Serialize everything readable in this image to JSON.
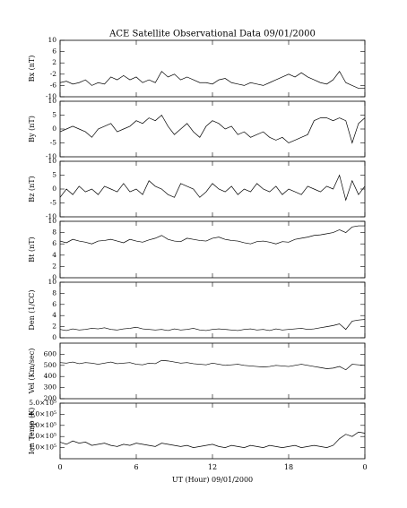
{
  "title": "ACE Satellite Observational Data   09/01/2000",
  "chart_data": [
    {
      "type": "line",
      "ylabel": "Bx (nT)",
      "xlim": [
        0,
        24
      ],
      "ylim": [
        -10,
        10
      ],
      "yticks": [
        -10,
        -6,
        -2,
        2,
        6,
        10
      ],
      "x": [
        0,
        0.5,
        1,
        1.5,
        2,
        2.5,
        3,
        3.5,
        4,
        4.5,
        5,
        5.5,
        6,
        6.5,
        7,
        7.5,
        8,
        8.5,
        9,
        9.5,
        10,
        10.5,
        11,
        11.5,
        12,
        12.5,
        13,
        13.5,
        14,
        14.5,
        15,
        15.5,
        16,
        16.5,
        17,
        17.5,
        18,
        18.5,
        19,
        19.5,
        20,
        20.5,
        21,
        21.5,
        22,
        22.5,
        23,
        23.5,
        24
      ],
      "values": [
        -5,
        -4.5,
        -5.5,
        -5,
        -4,
        -6,
        -5,
        -5.5,
        -3,
        -4,
        -2.5,
        -4,
        -3,
        -5,
        -4,
        -5,
        -1,
        -3,
        -2,
        -4,
        -3,
        -4,
        -5,
        -5,
        -5.5,
        -4,
        -3.5,
        -5,
        -5.5,
        -6,
        -5,
        -5.5,
        -6,
        -5,
        -4,
        -3,
        -2,
        -3,
        -1.5,
        -3,
        -4,
        -5,
        -5.5,
        -4,
        -1,
        -5,
        -6,
        -7,
        -7
      ]
    },
    {
      "type": "line",
      "ylabel": "By (nT)",
      "xlim": [
        0,
        24
      ],
      "ylim": [
        -10,
        10
      ],
      "yticks": [
        -10,
        -5,
        0,
        5,
        10
      ],
      "x": [
        0,
        0.5,
        1,
        1.5,
        2,
        2.5,
        3,
        3.5,
        4,
        4.5,
        5,
        5.5,
        6,
        6.5,
        7,
        7.5,
        8,
        8.5,
        9,
        9.5,
        10,
        10.5,
        11,
        11.5,
        12,
        12.5,
        13,
        13.5,
        14,
        14.5,
        15,
        15.5,
        16,
        16.5,
        17,
        17.5,
        18,
        18.5,
        19,
        19.5,
        20,
        20.5,
        21,
        21.5,
        22,
        22.5,
        23,
        23.5,
        24
      ],
      "values": [
        -1,
        0,
        1,
        0,
        -1,
        -3,
        0,
        1,
        2,
        -1,
        0,
        1,
        3,
        2,
        4,
        3,
        5,
        1,
        -2,
        0,
        2,
        -1,
        -3,
        1,
        3,
        2,
        0,
        1,
        -2,
        -1,
        -3,
        -2,
        -1,
        -3,
        -4,
        -3,
        -5,
        -4,
        -3,
        -2,
        3,
        4,
        4,
        3,
        4,
        3,
        -5,
        2,
        4
      ]
    },
    {
      "type": "line",
      "ylabel": "Bz (nT)",
      "xlim": [
        0,
        24
      ],
      "ylim": [
        -10,
        10
      ],
      "yticks": [
        -10,
        -5,
        0,
        5,
        10
      ],
      "x": [
        0,
        0.5,
        1,
        1.5,
        2,
        2.5,
        3,
        3.5,
        4,
        4.5,
        5,
        5.5,
        6,
        6.5,
        7,
        7.5,
        8,
        8.5,
        9,
        9.5,
        10,
        10.5,
        11,
        11.5,
        12,
        12.5,
        13,
        13.5,
        14,
        14.5,
        15,
        15.5,
        16,
        16.5,
        17,
        17.5,
        18,
        18.5,
        19,
        19.5,
        20,
        20.5,
        21,
        21.5,
        22,
        22.5,
        23,
        23.5,
        24
      ],
      "values": [
        -3,
        0,
        -2,
        1,
        -1,
        0,
        -2,
        1,
        0,
        -1,
        2,
        -1,
        0,
        -2,
        3,
        1,
        0,
        -2,
        -3,
        2,
        1,
        0,
        -3,
        -1,
        2,
        0,
        -1,
        1,
        -2,
        0,
        -1,
        2,
        0,
        -1,
        1,
        -2,
        0,
        -1,
        -2,
        1,
        0,
        -1,
        1,
        0,
        5,
        -4,
        3,
        -2,
        1
      ]
    },
    {
      "type": "line",
      "ylabel": "Bt (nT)",
      "xlim": [
        0,
        24
      ],
      "ylim": [
        0,
        10
      ],
      "yticks": [
        0,
        2,
        4,
        6,
        8,
        10
      ],
      "x": [
        0,
        0.5,
        1,
        1.5,
        2,
        2.5,
        3,
        3.5,
        4,
        4.5,
        5,
        5.5,
        6,
        6.5,
        7,
        7.5,
        8,
        8.5,
        9,
        9.5,
        10,
        10.5,
        11,
        11.5,
        12,
        12.5,
        13,
        13.5,
        14,
        14.5,
        15,
        15.5,
        16,
        16.5,
        17,
        17.5,
        18,
        18.5,
        19,
        19.5,
        20,
        20.5,
        21,
        21.5,
        22,
        22.5,
        23,
        23.5,
        24
      ],
      "values": [
        6.5,
        6.2,
        6.8,
        6.5,
        6.3,
        6,
        6.5,
        6.6,
        6.8,
        6.5,
        6.2,
        6.8,
        6.5,
        6.3,
        6.7,
        7,
        7.5,
        6.8,
        6.5,
        6.4,
        7,
        6.8,
        6.6,
        6.5,
        7,
        7.2,
        6.8,
        6.6,
        6.5,
        6.2,
        6,
        6.4,
        6.5,
        6.3,
        6,
        6.4,
        6.3,
        6.8,
        7,
        7.2,
        7.5,
        7.6,
        7.8,
        8,
        8.5,
        8,
        9,
        9.2,
        9.2
      ]
    },
    {
      "type": "line",
      "ylabel": "Den (1/CC)",
      "xlim": [
        0,
        24
      ],
      "ylim": [
        0,
        10
      ],
      "yticks": [
        0,
        2,
        4,
        6,
        8,
        10
      ],
      "x": [
        0,
        0.5,
        1,
        1.5,
        2,
        2.5,
        3,
        3.5,
        4,
        4.5,
        5,
        5.5,
        6,
        6.5,
        7,
        7.5,
        8,
        8.5,
        9,
        9.5,
        10,
        10.5,
        11,
        11.5,
        12,
        12.5,
        13,
        13.5,
        14,
        14.5,
        15,
        15.5,
        16,
        16.5,
        17,
        17.5,
        18,
        18.5,
        19,
        19.5,
        20,
        20.5,
        21,
        21.5,
        22,
        22.5,
        23,
        23.5,
        24
      ],
      "values": [
        1.5,
        1.3,
        1.6,
        1.4,
        1.5,
        1.7,
        1.6,
        1.8,
        1.5,
        1.4,
        1.6,
        1.7,
        1.9,
        1.6,
        1.5,
        1.4,
        1.5,
        1.3,
        1.6,
        1.4,
        1.5,
        1.7,
        1.4,
        1.3,
        1.5,
        1.6,
        1.5,
        1.4,
        1.3,
        1.5,
        1.6,
        1.4,
        1.5,
        1.3,
        1.6,
        1.4,
        1.5,
        1.6,
        1.7,
        1.5,
        1.6,
        1.8,
        2,
        2.2,
        2.5,
        1.5,
        3,
        3.2,
        3.3
      ]
    },
    {
      "type": "line",
      "ylabel": "Vel (Km/sec)",
      "xlim": [
        0,
        24
      ],
      "ylim": [
        200,
        700
      ],
      "yticks": [
        200,
        300,
        400,
        500,
        600
      ],
      "x": [
        0,
        0.5,
        1,
        1.5,
        2,
        2.5,
        3,
        3.5,
        4,
        4.5,
        5,
        5.5,
        6,
        6.5,
        7,
        7.5,
        8,
        8.5,
        9,
        9.5,
        10,
        10.5,
        11,
        11.5,
        12,
        12.5,
        13,
        13.5,
        14,
        14.5,
        15,
        15.5,
        16,
        16.5,
        17,
        17.5,
        18,
        18.5,
        19,
        19.5,
        20,
        20.5,
        21,
        21.5,
        22,
        22.5,
        23,
        23.5,
        24
      ],
      "values": [
        525,
        520,
        530,
        515,
        525,
        520,
        510,
        520,
        530,
        515,
        520,
        525,
        510,
        505,
        520,
        515,
        545,
        540,
        530,
        520,
        525,
        515,
        510,
        505,
        520,
        510,
        500,
        505,
        510,
        500,
        495,
        490,
        485,
        490,
        500,
        495,
        490,
        500,
        510,
        500,
        490,
        480,
        470,
        475,
        490,
        460,
        510,
        505,
        500
      ]
    },
    {
      "type": "line",
      "ylabel": "Ion Temp (K)",
      "xlabel": "UT (Hour)  09/01/2000",
      "xlim": [
        0,
        24
      ],
      "xticks": [
        0,
        6,
        12,
        18,
        {
          "value": 24,
          "label": "0"
        }
      ],
      "ylim": [
        0,
        500000
      ],
      "yticks": [
        {
          "value": 100000,
          "label": "1.0×10⁵"
        },
        {
          "value": 200000,
          "label": "2.0×10⁵"
        },
        {
          "value": 300000,
          "label": "3.0×10⁵"
        },
        {
          "value": 400000,
          "label": "4.0×10⁵"
        },
        {
          "value": 500000,
          "label": "5.0×10⁵"
        }
      ],
      "x": [
        0,
        0.5,
        1,
        1.5,
        2,
        2.5,
        3,
        3.5,
        4,
        4.5,
        5,
        5.5,
        6,
        6.5,
        7,
        7.5,
        8,
        8.5,
        9,
        9.5,
        10,
        10.5,
        11,
        11.5,
        12,
        12.5,
        13,
        13.5,
        14,
        14.5,
        15,
        15.5,
        16,
        16.5,
        17,
        17.5,
        18,
        18.5,
        19,
        19.5,
        20,
        20.5,
        21,
        21.5,
        22,
        22.5,
        23,
        23.5,
        24
      ],
      "values": [
        150000,
        130000,
        160000,
        140000,
        150000,
        120000,
        130000,
        140000,
        120000,
        110000,
        130000,
        120000,
        140000,
        130000,
        120000,
        110000,
        140000,
        130000,
        120000,
        110000,
        120000,
        100000,
        110000,
        120000,
        130000,
        110000,
        100000,
        120000,
        110000,
        100000,
        120000,
        110000,
        100000,
        120000,
        110000,
        100000,
        110000,
        120000,
        100000,
        110000,
        120000,
        110000,
        100000,
        120000,
        180000,
        220000,
        200000,
        240000,
        230000
      ]
    }
  ]
}
